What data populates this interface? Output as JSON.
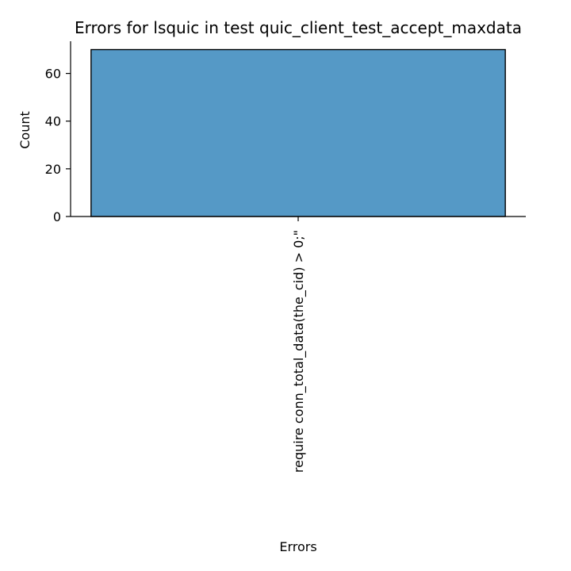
{
  "chart_data": {
    "type": "bar",
    "title": "Errors for lsquic in test quic_client_test_accept_maxdata",
    "xlabel": "Errors",
    "ylabel": "Count",
    "categories": [
      "require conn_total_data(the_cid) > 0;\""
    ],
    "values": [
      70
    ],
    "ylim": [
      0,
      73.5
    ],
    "yticks": [
      0,
      20,
      40,
      60
    ],
    "bar_color": "#5599c6",
    "grid": false
  }
}
